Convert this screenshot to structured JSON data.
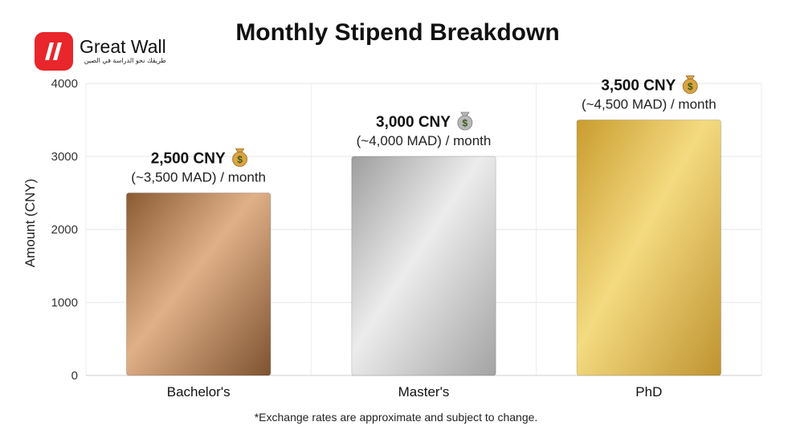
{
  "brand": {
    "name": "Great Wall",
    "tagline": "طريقك نحو الدراسة في الصين",
    "color": "#e8262b"
  },
  "chart_data": {
    "type": "bar",
    "title": "Monthly Stipend Breakdown",
    "xlabel": "",
    "ylabel": "Amount (CNY)",
    "ylim": [
      0,
      4000
    ],
    "yticks": [
      0,
      1000,
      2000,
      3000,
      4000
    ],
    "grid": true,
    "categories": [
      "Bachelor's",
      "Master's",
      "PhD"
    ],
    "values": [
      2500,
      3000,
      3500
    ],
    "data_labels": [
      "2,500 CNY",
      "3,000 CNY",
      "3,500 CNY"
    ],
    "sub_labels": [
      "(~3,500 MAD) / month",
      "(~4,000 MAD) / month",
      "(~4,500 MAD) / month"
    ],
    "label_icon": "money-bag-icon",
    "bar_colors": [
      [
        "#8a5a33",
        "#e0b088",
        "#7e5330"
      ],
      [
        "#9e9e9e",
        "#ececec",
        "#a3a3a3"
      ],
      [
        "#c99c2e",
        "#f4da80",
        "#bf9330"
      ]
    ],
    "footnote": "*Exchange rates are approximate and subject to change."
  }
}
